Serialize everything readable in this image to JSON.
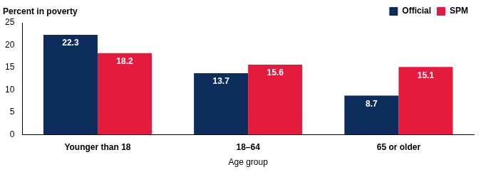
{
  "chart_data": {
    "type": "bar",
    "ylabel": "Percent in poverty",
    "xlabel": "Age group",
    "categories": [
      "Younger than 18",
      "18–64",
      "65 or older"
    ],
    "series": [
      {
        "name": "Official",
        "color": "#0c2c5c",
        "values": [
          22.3,
          13.7,
          8.7
        ]
      },
      {
        "name": "SPM",
        "color": "#e41b3c",
        "values": [
          18.2,
          15.6,
          15.1
        ]
      }
    ],
    "ylim": [
      0,
      25
    ],
    "yticks": [
      0,
      5,
      10,
      15,
      20,
      25
    ],
    "grid": false,
    "legend": "top-right",
    "data_labels": true
  }
}
